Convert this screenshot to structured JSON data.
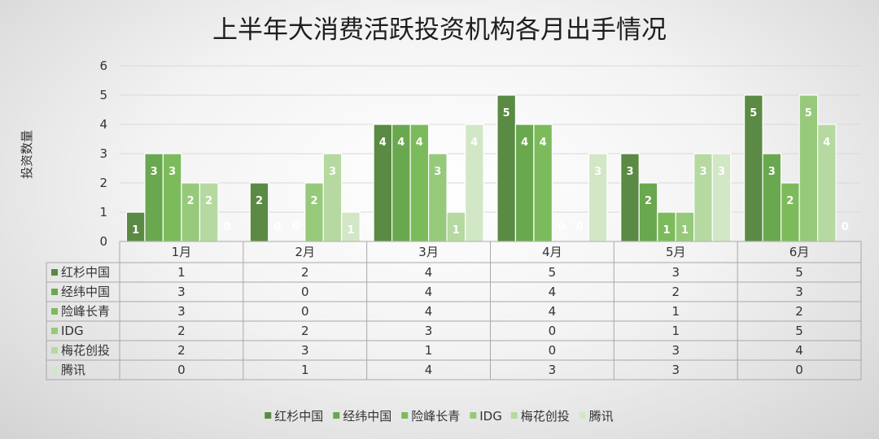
{
  "chart_data": {
    "type": "bar",
    "title": "上半年大消费活跃投资机构各月出手情况",
    "ylabel": "投资数量",
    "xlabel": "",
    "ylim": [
      0,
      6
    ],
    "yticks": [
      "0",
      "1",
      "2",
      "3",
      "4",
      "5",
      "6"
    ],
    "grid": true,
    "legend": "bottom",
    "data_table": true,
    "categories": [
      "1月",
      "2月",
      "3月",
      "4月",
      "5月",
      "6月"
    ],
    "series": [
      {
        "name": "红杉中国",
        "color": "#5a8a43",
        "values": [
          1,
          2,
          4,
          5,
          3,
          5
        ]
      },
      {
        "name": "经纬中国",
        "color": "#6aa84f",
        "values": [
          3,
          0,
          4,
          4,
          2,
          3
        ]
      },
      {
        "name": "险峰长青",
        "color": "#7cbb5c",
        "values": [
          3,
          0,
          4,
          4,
          1,
          2
        ]
      },
      {
        "name": "IDG",
        "color": "#97c97b",
        "values": [
          2,
          2,
          3,
          0,
          1,
          5
        ]
      },
      {
        "name": "梅花创投",
        "color": "#b5d9a0",
        "values": [
          2,
          3,
          1,
          0,
          3,
          4
        ]
      },
      {
        "name": "腾讯",
        "color": "#d2e7c6",
        "values": [
          0,
          1,
          4,
          3,
          3,
          0
        ]
      }
    ]
  }
}
